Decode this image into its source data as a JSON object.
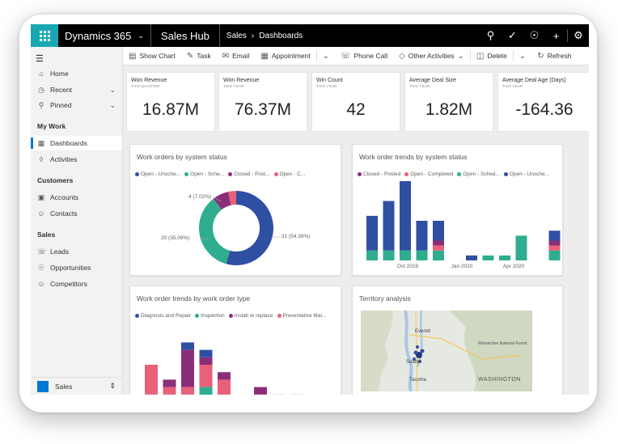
{
  "topbar": {
    "app_name": "Dynamics 365",
    "hub": "Sales Hub",
    "breadcrumb": [
      "Sales",
      "Dashboards"
    ],
    "icons": [
      "search-icon",
      "task-check-icon",
      "lightbulb-icon",
      "plus-icon",
      "settings-icon"
    ]
  },
  "commands": {
    "show_chart": "Show Chart",
    "task": "Task",
    "email": "Email",
    "appointment": "Appointment",
    "phone_call": "Phone Call",
    "other_activities": "Other Activities",
    "delete": "Delete",
    "refresh": "Refresh"
  },
  "sidebar": {
    "home": "Home",
    "recent": "Recent",
    "pinned": "Pinned",
    "my_work_header": "My Work",
    "dashboards": "Dashboards",
    "activities": "Activities",
    "customers_header": "Customers",
    "accounts": "Accounts",
    "contacts": "Contacts",
    "sales_header": "Sales",
    "leads": "Leads",
    "opportunities": "Opportunities",
    "competitors": "Competitors",
    "area": "Sales"
  },
  "kpis": [
    {
      "title": "Won Revenue",
      "sub": "THIS QUARTER",
      "value": "16.87M"
    },
    {
      "title": "Won Revenue",
      "sub": "THIS YEAR",
      "value": "76.37M"
    },
    {
      "title": "Win Count",
      "sub": "THIS YEAR",
      "value": "42"
    },
    {
      "title": "Average Deal Size",
      "sub": "THIS YEAR",
      "value": "1.82M"
    },
    {
      "title": "Average Deal Age (Days)",
      "sub": "THIS YEAR",
      "value": "-164.36"
    }
  ],
  "cards": {
    "donut_title": "Work orders by system status",
    "trend_title": "Work order trends by system status",
    "type_title": "Work order trends by work order type",
    "territory_title": "Territory analysis"
  },
  "colors": {
    "navy": "#2f4fa3",
    "teal": "#2fae8f",
    "purple": "#8b2e7a",
    "pink": "#e9607a",
    "brand": "#18a8b4"
  },
  "chart_data": [
    {
      "type": "pie",
      "title": "Work orders by system status",
      "legend": [
        "Open - Unsche...",
        "Open - Sche...",
        "Closed - Post...",
        "Open - C..."
      ],
      "slices": [
        {
          "label": "Open - Unsche...",
          "value": 31,
          "text": "31 (54.39%)",
          "color": "#2f4fa3"
        },
        {
          "label": "Open - Sche...",
          "value": 20,
          "text": "20 (35.09%)",
          "color": "#2fae8f"
        },
        {
          "label": "Closed - Post...",
          "value": 4,
          "text": "4 (7.02%)",
          "color": "#8b2e7a"
        },
        {
          "label": "Open - C...",
          "value": 2,
          "text": "",
          "color": "#e9607a"
        }
      ]
    },
    {
      "type": "bar",
      "title": "Work order trends by system status",
      "legend": [
        "Closed - Posted",
        "Open - Completed",
        "Open - Sched...",
        "Open - Unsche..."
      ],
      "x_ticks": [
        "Oct 2019",
        "Jan 2020",
        "Apr 2020"
      ],
      "ylim": [
        0,
        16
      ],
      "series": [
        {
          "name": "Closed - Posted",
          "color": "#8b2e7a",
          "values": [
            0,
            0,
            0,
            0,
            1,
            0,
            0,
            0,
            0,
            0,
            0,
            1,
            0
          ]
        },
        {
          "name": "Open - Completed",
          "color": "#e9607a",
          "values": [
            0,
            0,
            0,
            0,
            1,
            0,
            0,
            0,
            0,
            0,
            0,
            1,
            0
          ]
        },
        {
          "name": "Open - Sched...",
          "color": "#2fae8f",
          "values": [
            2,
            2,
            2,
            2,
            2,
            0,
            0,
            1,
            1,
            5,
            0,
            2,
            2
          ]
        },
        {
          "name": "Open - Unsche...",
          "color": "#2f4fa3",
          "values": [
            7,
            10,
            14,
            6,
            4,
            0,
            1,
            0,
            0,
            0,
            0,
            2,
            1
          ]
        }
      ]
    },
    {
      "type": "bar",
      "title": "Work order trends by work order type",
      "legend": [
        "Diagnosis and Repair",
        "Inspection",
        "Install or replace",
        "Preventative Mai..."
      ],
      "ylim": [
        0,
        10
      ],
      "series": [
        {
          "name": "Diagnosis and Repair",
          "color": "#2f4fa3",
          "values": [
            0,
            0,
            1,
            1,
            0,
            0,
            0,
            0,
            0
          ]
        },
        {
          "name": "Inspection",
          "color": "#2fae8f",
          "values": [
            1,
            1,
            1,
            2,
            1,
            0,
            0,
            1,
            1
          ]
        },
        {
          "name": "Install or replace",
          "color": "#8b2e7a",
          "values": [
            0,
            1,
            5,
            1,
            1,
            0,
            1,
            0,
            0
          ]
        },
        {
          "name": "Preventative Mai...",
          "color": "#e9607a",
          "values": [
            4,
            1,
            1,
            3,
            2,
            0,
            1,
            0,
            0
          ]
        }
      ]
    }
  ],
  "map": {
    "labels": [
      "Everett",
      "Seattle",
      "Tacoma",
      "Wenatchee National Forest",
      "WASHINGTON"
    ]
  }
}
